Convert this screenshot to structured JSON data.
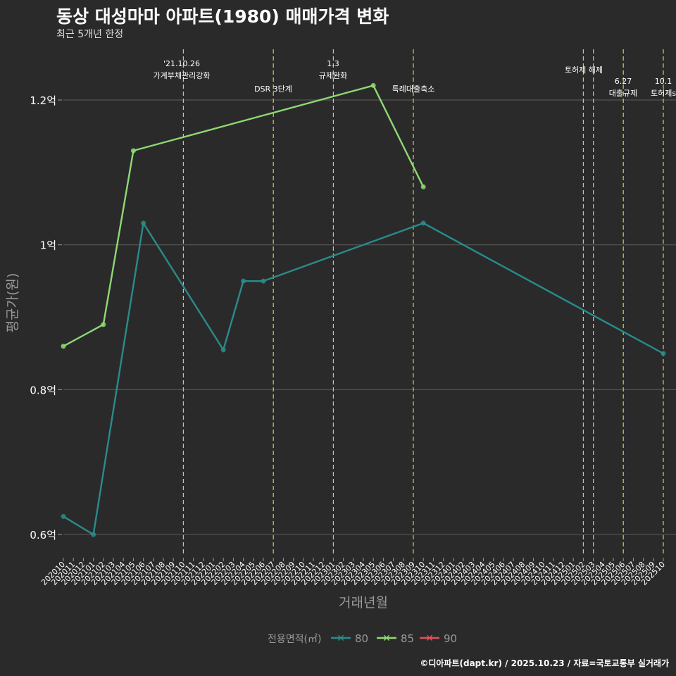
{
  "chart_data": {
    "type": "line",
    "title": "동상 대성마마 아파트(1980) 매매가격 변화",
    "subtitle": "최근 5개년 한정",
    "xlabel": "거래년월",
    "ylabel": "평균가(원)",
    "caption": "©디아파트(dapt.kr) / 2025.10.23 / 자료=국토교통부 실거래가",
    "legend_title": "전용면적(㎡)",
    "legend_position": "bottom",
    "ylim": [
      0.57,
      1.27
    ],
    "yticks": [
      {
        "value": 0.6,
        "label": "0.6억"
      },
      {
        "value": 0.8,
        "label": "0.8억"
      },
      {
        "value": 1.0,
        "label": "1억"
      },
      {
        "value": 1.2,
        "label": "1.2억"
      }
    ],
    "categories": [
      "202010",
      "202011",
      "202012",
      "202101",
      "202102",
      "202103",
      "202104",
      "202105",
      "202106",
      "202107",
      "202108",
      "202109",
      "202110",
      "202111",
      "202112",
      "202201",
      "202202",
      "202203",
      "202204",
      "202205",
      "202206",
      "202207",
      "202208",
      "202209",
      "202210",
      "202211",
      "202212",
      "202301",
      "202302",
      "202303",
      "202304",
      "202305",
      "202306",
      "202307",
      "202308",
      "202309",
      "202310",
      "202311",
      "202312",
      "202401",
      "202402",
      "202403",
      "202404",
      "202405",
      "202406",
      "202407",
      "202408",
      "202409",
      "202410",
      "202411",
      "202412",
      "202501",
      "202502",
      "202503",
      "202504",
      "202505",
      "202506",
      "202507",
      "202508",
      "202509",
      "202510"
    ],
    "series": [
      {
        "name": "80",
        "color": "#2a8b8a",
        "points": [
          {
            "x": "202010",
            "y": 0.625
          },
          {
            "x": "202101",
            "y": 0.6
          },
          {
            "x": "202106",
            "y": 1.03
          },
          {
            "x": "202202",
            "y": 0.855
          },
          {
            "x": "202204",
            "y": 0.95
          },
          {
            "x": "202206",
            "y": 0.95
          },
          {
            "x": "202310",
            "y": 1.03
          },
          {
            "x": "202510",
            "y": 0.85
          }
        ]
      },
      {
        "name": "85",
        "color": "#8ed973",
        "points": [
          {
            "x": "202010",
            "y": 0.86
          },
          {
            "x": "202102",
            "y": 0.89
          },
          {
            "x": "202105",
            "y": 1.13
          },
          {
            "x": "202305",
            "y": 1.22
          },
          {
            "x": "202310",
            "y": 1.08
          }
        ]
      },
      {
        "name": "90",
        "color": "#e0525a",
        "points": []
      }
    ],
    "annotations": [
      {
        "x": "202110",
        "lines": [
          "'21.10.26",
          "가계부채관리강화"
        ]
      },
      {
        "x": "202207",
        "lines": [
          "DSR 3단계"
        ]
      },
      {
        "x": "202301",
        "lines": [
          "1.3",
          "규제완화"
        ]
      },
      {
        "x": "202309",
        "lines": [
          "특례대출축소"
        ]
      },
      {
        "x": "202502",
        "lines": [
          "토허제 해제"
        ]
      },
      {
        "x": "202503",
        "lines": [
          ""
        ]
      },
      {
        "x": "202506",
        "lines": [
          "6.27",
          "대출규제"
        ]
      },
      {
        "x": "202510",
        "lines": [
          "10.1",
          "토허제s"
        ]
      }
    ]
  },
  "colors": {
    "background": "#2b2a2b",
    "grid": "#5c5c5c",
    "vline": "#d4d422",
    "text": "#ffffff",
    "muted": "#9a9a9a"
  }
}
